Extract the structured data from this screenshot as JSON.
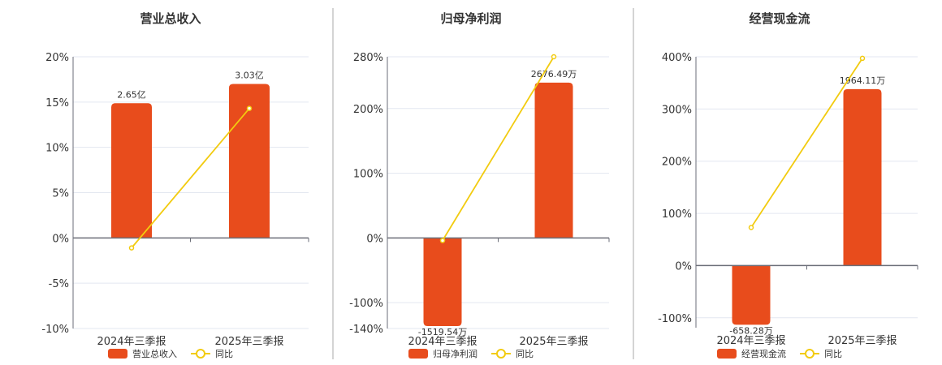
{
  "colors": {
    "bar": "#e84c1c",
    "line": "#f2cb0f",
    "grid": "#e3e7f0",
    "axis": "#6b6e78",
    "divider": "#aaaaaa"
  },
  "chart_data": [
    {
      "type": "bar+line",
      "title": "营业总收入",
      "categories": [
        "2024年三季报",
        "2025年三季报"
      ],
      "bar_series": {
        "name": "营业总收入",
        "values": [
          2.65,
          3.03
        ],
        "unit": "亿",
        "labels": [
          "2.65亿",
          "3.03亿"
        ]
      },
      "line_series": {
        "name": "同比",
        "values": [
          -1.1,
          14.3
        ],
        "unit": "%"
      },
      "ylim": [
        -10,
        20
      ],
      "yticks": [
        -10,
        -5,
        0,
        5,
        10,
        15,
        20
      ],
      "ytick_labels": [
        "-10%",
        "-5%",
        "0%",
        "5%",
        "10%",
        "15%",
        "20%"
      ],
      "grid": true,
      "legend": "bottom"
    },
    {
      "type": "bar+line",
      "title": "归母净利润",
      "categories": [
        "2024年三季报",
        "2025年三季报"
      ],
      "bar_series": {
        "name": "归母净利润",
        "values": [
          -1519.54,
          2676.49
        ],
        "unit": "万",
        "labels": [
          "-1519.54万",
          "2676.49万"
        ]
      },
      "line_series": {
        "name": "同比",
        "values": [
          -4,
          280
        ],
        "unit": "%"
      },
      "ylim": [
        -140,
        280
      ],
      "yticks": [
        -140,
        -100,
        0,
        100,
        200,
        280
      ],
      "ytick_labels": [
        "-140%",
        "-100%",
        "0%",
        "100%",
        "200%",
        "280%"
      ],
      "grid": true,
      "legend": "bottom"
    },
    {
      "type": "bar+line",
      "title": "经营现金流",
      "categories": [
        "2024年三季报",
        "2025年三季报"
      ],
      "bar_series": {
        "name": "经营现金流",
        "values": [
          -658.28,
          1964.11
        ],
        "unit": "万",
        "labels": [
          "-658.28万",
          "1964.11万"
        ]
      },
      "line_series": {
        "name": "同比",
        "values": [
          73,
          397
        ],
        "unit": "%"
      },
      "ylim": [
        -119,
        400
      ],
      "yticks": [
        -100,
        0,
        100,
        200,
        300,
        400
      ],
      "ytick_labels": [
        "-100%",
        "0%",
        "100%",
        "200%",
        "300%",
        "400%"
      ],
      "grid": true,
      "legend": "bottom"
    }
  ]
}
